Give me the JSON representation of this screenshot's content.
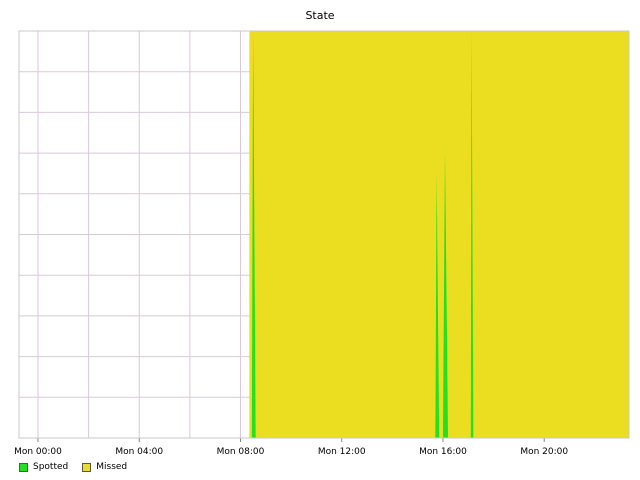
{
  "chart_data": {
    "type": "area",
    "title": "State",
    "xlabel": "",
    "ylabel": "",
    "x_domain_hours": [
      -0.75,
      23.35
    ],
    "xtick_hours": [
      0,
      4,
      8,
      12,
      16,
      20
    ],
    "xtick_labels": [
      "Mon 00:00",
      "Mon 04:00",
      "Mon 08:00",
      "Mon 12:00",
      "Mon 16:00",
      "Mon 20:00"
    ],
    "ylim": [
      0,
      1
    ],
    "ytick_count": 10,
    "grid": true,
    "legend_position": "bottom-left",
    "series": [
      {
        "name": "Spotted",
        "color": "#22e022",
        "points": [
          [
            8.45,
            0
          ],
          [
            8.5,
            1
          ],
          [
            8.6,
            0
          ],
          [
            15.7,
            0
          ],
          [
            15.75,
            0.65
          ],
          [
            15.85,
            0
          ],
          [
            16.0,
            0
          ],
          [
            16.08,
            0.7
          ],
          [
            16.2,
            0
          ],
          [
            17.1,
            0
          ],
          [
            17.13,
            1
          ],
          [
            17.2,
            0
          ]
        ]
      },
      {
        "name": "Missed",
        "color": "#ebdd1f",
        "start": 8.35,
        "end": 23.35,
        "value": 1
      }
    ]
  }
}
